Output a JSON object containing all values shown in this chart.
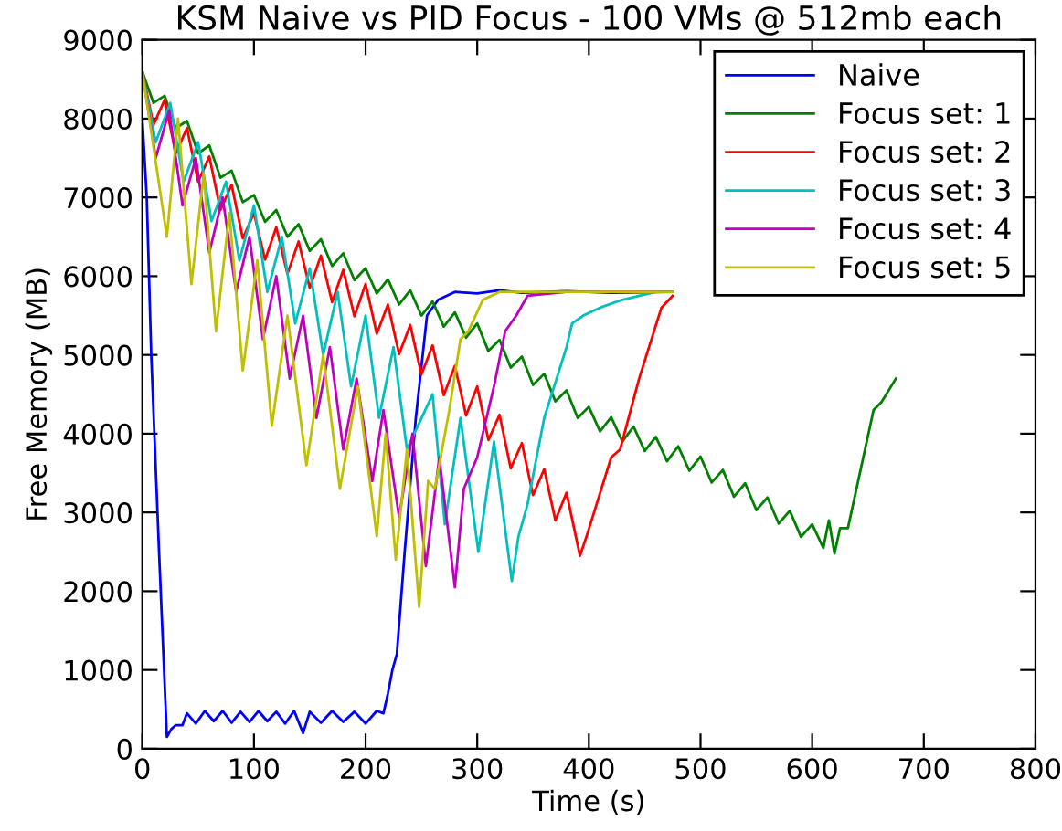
{
  "chart_data": {
    "type": "line",
    "title": "KSM Naive vs PID Focus - 100 VMs @ 512mb each",
    "xlabel": "Time (s)",
    "ylabel": "Free Memory (MB)",
    "xlim": [
      0,
      800
    ],
    "ylim": [
      0,
      9000
    ],
    "xticks": [
      0,
      100,
      200,
      300,
      400,
      500,
      600,
      700,
      800
    ],
    "yticks": [
      0,
      1000,
      2000,
      3000,
      4000,
      5000,
      6000,
      7000,
      8000,
      9000
    ],
    "grid": false,
    "legend": "top right",
    "marker": "none",
    "line_style": "solid",
    "series": [
      {
        "name": "Naive",
        "color": "#0000ff",
        "x": [
          0,
          4,
          8,
          15,
          22,
          26,
          30,
          36,
          40,
          48,
          56,
          64,
          72,
          80,
          88,
          96,
          104,
          112,
          120,
          128,
          136,
          144,
          150,
          160,
          170,
          180,
          190,
          200,
          210,
          216,
          220,
          224,
          228,
          235,
          245,
          255,
          265,
          280,
          300,
          320,
          340,
          380,
          420,
          475
        ],
        "values": [
          8000,
          7000,
          5000,
          2500,
          150,
          250,
          300,
          300,
          450,
          320,
          480,
          350,
          480,
          330,
          470,
          340,
          480,
          350,
          470,
          320,
          480,
          200,
          470,
          330,
          480,
          340,
          470,
          320,
          480,
          450,
          700,
          1000,
          1200,
          2500,
          4200,
          5500,
          5700,
          5800,
          5780,
          5820,
          5790,
          5810,
          5790,
          5800
        ]
      },
      {
        "name": "Focus set: 1",
        "color": "#008000",
        "x": [
          0,
          10,
          20,
          30,
          40,
          50,
          60,
          70,
          80,
          90,
          100,
          110,
          120,
          130,
          140,
          150,
          160,
          170,
          180,
          190,
          200,
          210,
          220,
          230,
          240,
          250,
          260,
          270,
          280,
          290,
          300,
          310,
          320,
          330,
          340,
          350,
          360,
          370,
          380,
          390,
          400,
          410,
          420,
          430,
          440,
          450,
          460,
          470,
          480,
          490,
          500,
          510,
          520,
          530,
          540,
          550,
          560,
          570,
          580,
          590,
          600,
          610,
          615,
          620,
          625,
          632,
          655,
          662,
          675
        ],
        "values": [
          8600,
          8200,
          8290,
          7880,
          7970,
          7560,
          7660,
          7250,
          7340,
          6940,
          7030,
          6690,
          6840,
          6500,
          6660,
          6320,
          6470,
          6130,
          6290,
          5950,
          6100,
          5780,
          5960,
          5640,
          5820,
          5500,
          5680,
          5360,
          5540,
          5220,
          5400,
          5050,
          5190,
          4840,
          4980,
          4620,
          4760,
          4410,
          4550,
          4200,
          4340,
          4030,
          4210,
          3900,
          4090,
          3780,
          3960,
          3650,
          3840,
          3530,
          3710,
          3380,
          3540,
          3200,
          3370,
          3030,
          3190,
          2860,
          3020,
          2690,
          2850,
          2550,
          2900,
          2480,
          2800,
          2800,
          4300,
          4400,
          4700
        ]
      },
      {
        "name": "Focus set: 2",
        "color": "#ff0000",
        "x": [
          0,
          10,
          20,
          30,
          40,
          50,
          60,
          70,
          80,
          90,
          100,
          110,
          120,
          130,
          140,
          150,
          160,
          170,
          180,
          190,
          200,
          210,
          220,
          230,
          240,
          250,
          260,
          270,
          280,
          290,
          300,
          310,
          320,
          330,
          340,
          350,
          360,
          370,
          380,
          392,
          398,
          420,
          428,
          445,
          465,
          475
        ],
        "values": [
          8600,
          7920,
          8240,
          7560,
          7880,
          7200,
          7520,
          6840,
          7160,
          6480,
          6800,
          6210,
          6620,
          6030,
          6440,
          5850,
          6260,
          5670,
          6080,
          5490,
          5900,
          5270,
          5640,
          5010,
          5380,
          4750,
          5120,
          4490,
          4860,
          4230,
          4600,
          3920,
          4240,
          3560,
          3880,
          3220,
          3550,
          2900,
          3250,
          2450,
          2700,
          3700,
          3800,
          4700,
          5600,
          5750
        ]
      },
      {
        "name": "Focus set: 3",
        "color": "#00bfbf",
        "x": [
          0,
          12,
          25,
          37,
          50,
          62,
          75,
          87,
          100,
          112,
          125,
          137,
          150,
          162,
          175,
          187,
          200,
          212,
          225,
          237,
          260,
          271,
          285,
          301,
          315,
          331,
          337,
          345,
          360,
          380,
          385,
          395,
          410,
          430,
          460,
          475
        ],
        "values": [
          8600,
          7700,
          8200,
          7200,
          7700,
          6700,
          7200,
          6200,
          6900,
          5800,
          6500,
          5400,
          6100,
          5000,
          5800,
          4600,
          5500,
          4200,
          5100,
          3800,
          4500,
          2850,
          4200,
          2500,
          3900,
          2130,
          2700,
          3100,
          4200,
          5100,
          5400,
          5500,
          5600,
          5700,
          5800,
          5800
        ]
      },
      {
        "name": "Focus set: 4",
        "color": "#bf00bf",
        "x": [
          0,
          12,
          24,
          36,
          48,
          60,
          72,
          84,
          96,
          108,
          120,
          132,
          144,
          156,
          168,
          180,
          192,
          206,
          216,
          230,
          242,
          254,
          266,
          280,
          288,
          300,
          315,
          325,
          335,
          345,
          380,
          475
        ],
        "values": [
          8600,
          7500,
          8100,
          6900,
          7500,
          6300,
          7000,
          5800,
          6500,
          5200,
          6000,
          4700,
          5500,
          4200,
          5100,
          3800,
          4700,
          3400,
          4300,
          2940,
          4000,
          2320,
          3700,
          2050,
          3300,
          3700,
          4600,
          5300,
          5500,
          5750,
          5800,
          5800
        ]
      },
      {
        "name": "Focus set: 5",
        "color": "#bfbf00",
        "x": [
          0,
          22,
          32,
          44,
          55,
          66,
          78,
          90,
          103,
          116,
          130,
          147,
          162,
          177,
          193,
          210,
          218,
          227,
          237,
          248,
          256,
          262,
          275,
          285,
          292,
          305,
          320,
          475
        ],
        "values": [
          8600,
          6500,
          8000,
          5900,
          7300,
          5300,
          6800,
          4800,
          6200,
          4100,
          5500,
          3600,
          5000,
          3300,
          4600,
          2700,
          4000,
          2400,
          3800,
          1800,
          3400,
          3300,
          4300,
          5200,
          5300,
          5700,
          5800,
          5800
        ]
      }
    ]
  }
}
